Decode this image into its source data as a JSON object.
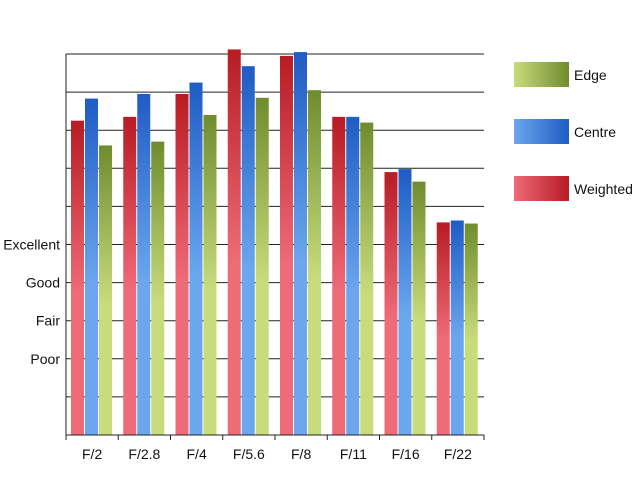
{
  "chart_data": {
    "type": "bar",
    "categories": [
      "F/2",
      "F/2.8",
      "F/4",
      "F/5.6",
      "F/8",
      "F/11",
      "F/16",
      "F/22"
    ],
    "y_tick_labels": [
      "Excellent",
      "Good",
      "Fair",
      "Poor"
    ],
    "y_tick_values": [
      4,
      3,
      2,
      1
    ],
    "ylim": [
      -1,
      9
    ],
    "series": [
      {
        "name": "Weighted",
        "values": [
          7.25,
          7.35,
          7.95,
          9.12,
          8.95,
          7.35,
          5.9,
          4.58
        ],
        "color_light": "#ee6b78",
        "color_dark": "#b81c24"
      },
      {
        "name": "Centre",
        "values": [
          7.83,
          7.95,
          8.25,
          8.68,
          9.05,
          7.35,
          5.98,
          4.63
        ],
        "color_light": "#6ba6ee",
        "color_dark": "#1f5cc4"
      },
      {
        "name": "Edge",
        "values": [
          6.6,
          6.7,
          7.4,
          7.85,
          8.05,
          7.2,
          5.65,
          4.55
        ],
        "color_light": "#c8dc7c",
        "color_dark": "#6f8c2e"
      }
    ],
    "legend_order": [
      "Edge",
      "Centre",
      "Weighted"
    ],
    "legend_position": "right",
    "grid": true
  }
}
